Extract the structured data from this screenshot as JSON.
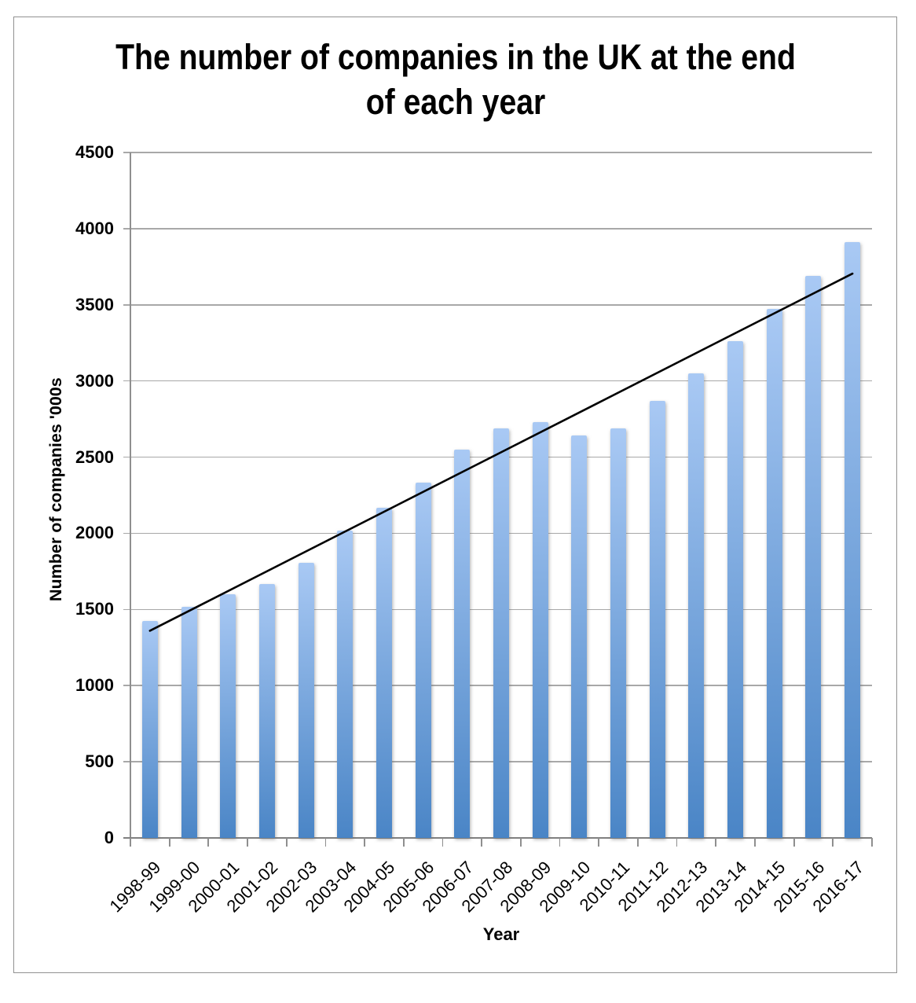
{
  "chart_data": {
    "type": "bar",
    "title": "The number of companies in the UK at the end of each year",
    "xlabel": "Year",
    "ylabel": "Number of companies '000s",
    "categories": [
      "1998-99",
      "1999-00",
      "2000-01",
      "2001-02",
      "2002-03",
      "2003-04",
      "2004-05",
      "2005-06",
      "2006-07",
      "2007-08",
      "2008-09",
      "2009-10",
      "2010-11",
      "2011-12",
      "2012-13",
      "2013-14",
      "2014-15",
      "2015-16",
      "2016-17"
    ],
    "values": [
      1425,
      1515,
      1600,
      1665,
      1805,
      2020,
      2170,
      2330,
      2550,
      2690,
      2730,
      2640,
      2690,
      2870,
      3050,
      3260,
      3475,
      3690,
      3910
    ],
    "ylim": [
      0,
      4500
    ],
    "y_ticks": [
      "0",
      "500",
      "1000",
      "1500",
      "2000",
      "2500",
      "3000",
      "3500",
      "4000",
      "4500"
    ],
    "grid": true,
    "legend_position": "none",
    "trendline": {
      "type": "linear",
      "start_value": 1360,
      "end_value": 3705,
      "color": "#000000"
    },
    "colors": {
      "bar_top": "#a9c9f4",
      "bar_bottom": "#4a85c6",
      "gridline": "#a8a8a8",
      "axis": "#808080",
      "frame_border": "#919191",
      "text": "#000000",
      "background": "#ffffff"
    }
  }
}
